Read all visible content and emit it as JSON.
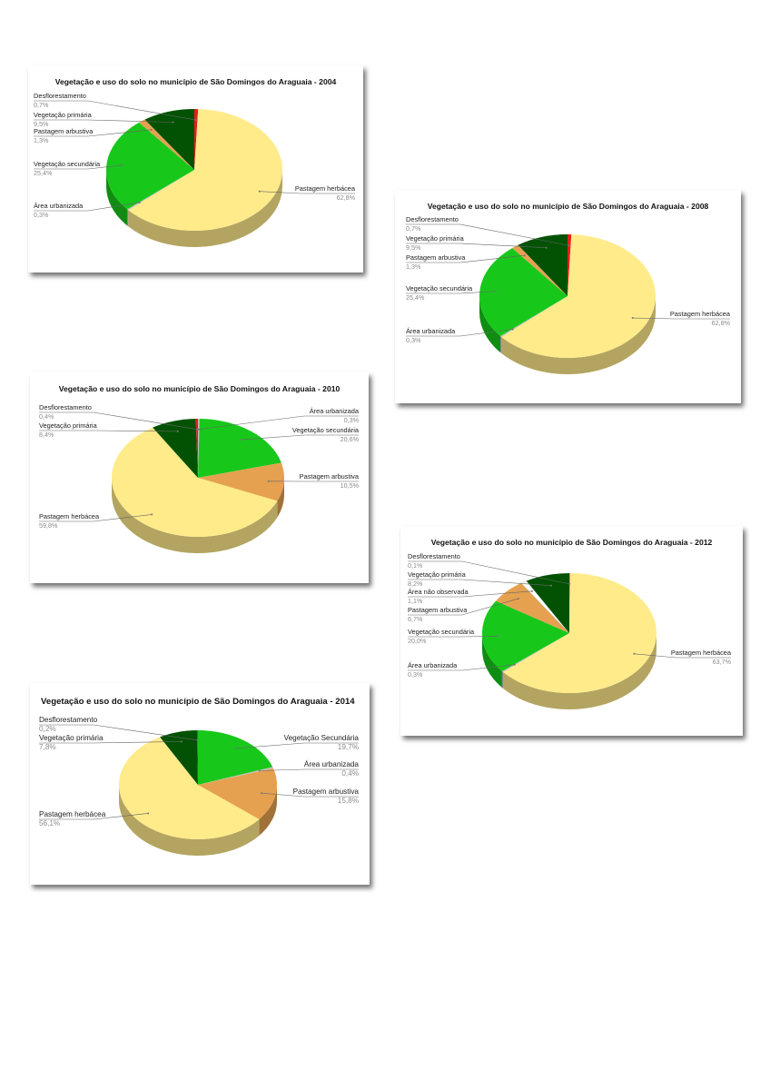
{
  "colors": {
    "Pastagem herbácea": "#ffeb8a",
    "Vegetação secundária": "#17c81a",
    "Vegetação Secundária": "#17c81a",
    "Pastagem arbustiva": "#e5a150",
    "Vegetação primária": "#035204",
    "Desflorestamento": "#e81c1c",
    "Área urbanizada": "#bdbdbd",
    "Área não observada": "#ffffff"
  },
  "chart_data": [
    {
      "id": "c2004",
      "type": "pie",
      "title": "Vegetação e uso do solo no município de São Domingos do Araguaia - 2004",
      "slices": [
        {
          "name": "Desflorestamento",
          "value": 0.7,
          "value_label": "0,7%"
        },
        {
          "name": "Pastagem herbácea",
          "value": 62.8,
          "value_label": "62,8%"
        },
        {
          "name": "Área urbanizada",
          "value": 0.3,
          "value_label": "0,3%"
        },
        {
          "name": "Vegetação secundária",
          "value": 25.4,
          "value_label": "25,4%"
        },
        {
          "name": "Pastagem arbustiva",
          "value": 1.3,
          "value_label": "1,3%"
        },
        {
          "name": "Vegetação primária",
          "value": 9.5,
          "value_label": "9,5%"
        }
      ]
    },
    {
      "id": "c2008",
      "type": "pie",
      "title": "Vegetação e uso do solo no município de São Domingos do Araguaia - 2008",
      "slices": [
        {
          "name": "Desflorestamento",
          "value": 0.7,
          "value_label": "0,7%"
        },
        {
          "name": "Pastagem herbácea",
          "value": 62.8,
          "value_label": "62,8%"
        },
        {
          "name": "Área urbanizada",
          "value": 0.3,
          "value_label": "0,3%"
        },
        {
          "name": "Vegetação secundária",
          "value": 25.4,
          "value_label": "25,4%"
        },
        {
          "name": "Pastagem arbustiva",
          "value": 1.3,
          "value_label": "1,3%"
        },
        {
          "name": "Vegetação primária",
          "value": 9.5,
          "value_label": "9,5%"
        }
      ]
    },
    {
      "id": "c2010",
      "type": "pie",
      "title": "Vegetação e uso do solo no município de São Domingos do Araguaia - 2010",
      "slices": [
        {
          "name": "Área urbanizada",
          "value": 0.3,
          "value_label": "0,3%"
        },
        {
          "name": "Vegetação secundária",
          "value": 20.6,
          "value_label": "20,6%"
        },
        {
          "name": "Pastagem arbustiva",
          "value": 10.5,
          "value_label": "10,5%"
        },
        {
          "name": "Pastagem herbácea",
          "value": 59.8,
          "value_label": "59,8%"
        },
        {
          "name": "Vegetação primária",
          "value": 8.4,
          "value_label": "8,4%"
        },
        {
          "name": "Desflorestamento",
          "value": 0.4,
          "value_label": "0,4%"
        }
      ]
    },
    {
      "id": "c2012",
      "type": "pie",
      "title": "Vegetação e uso do  solo no município de São Domingos do Araguaia - 2012",
      "slices": [
        {
          "name": "Desflorestamento",
          "value": 0.1,
          "value_label": "0,1%"
        },
        {
          "name": "Pastagem herbácea",
          "value": 63.7,
          "value_label": "63,7%"
        },
        {
          "name": "Área urbanizada",
          "value": 0.3,
          "value_label": "0,3%"
        },
        {
          "name": "Vegetação secundária",
          "value": 20.0,
          "value_label": "20,0%"
        },
        {
          "name": "Pastagem arbustiva",
          "value": 6.7,
          "value_label": "6,7%"
        },
        {
          "name": "Área não observada",
          "value": 1.1,
          "value_label": "1,1%"
        },
        {
          "name": "Vegetação primária",
          "value": 8.2,
          "value_label": "8,2%"
        }
      ]
    },
    {
      "id": "c2014",
      "type": "pie",
      "title": "Vegetação e uso do solo no município de São Domingos do Araguaia - 2014",
      "slices": [
        {
          "name": "Vegetação Secundária",
          "value": 19.7,
          "value_label": "19,7%"
        },
        {
          "name": "Área urbanizada",
          "value": 0.4,
          "value_label": "0,4%"
        },
        {
          "name": "Pastagem arbustiva",
          "value": 15.8,
          "value_label": "15,8%"
        },
        {
          "name": "Pastagem herbácea",
          "value": 56.1,
          "value_label": "56,1%"
        },
        {
          "name": "Vegetação primária",
          "value": 7.8,
          "value_label": "7,8%"
        },
        {
          "name": "Desflorestamento",
          "value": 0.2,
          "value_label": "0,2%"
        }
      ]
    }
  ]
}
